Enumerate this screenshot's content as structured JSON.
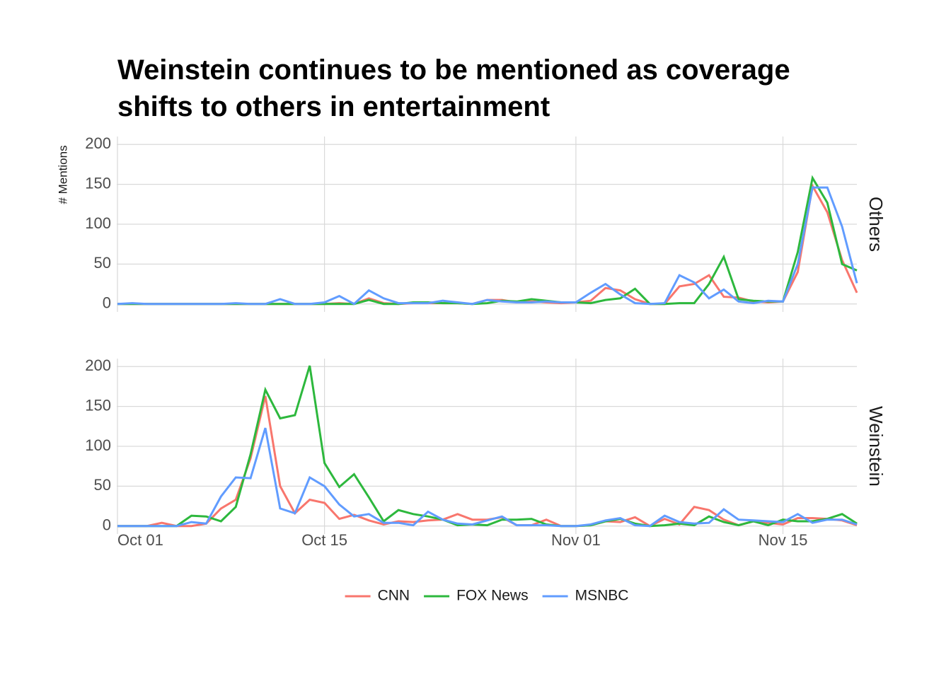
{
  "title": [
    "Weinstein continues to be mentioned as coverage",
    "shifts to others in entertainment"
  ],
  "chart_data": [
    {
      "type": "line",
      "facet": "Others",
      "y_label": "# Mentions",
      "categories": [
        "Oct 01",
        "Oct 02",
        "Oct 03",
        "Oct 04",
        "Oct 05",
        "Oct 06",
        "Oct 07",
        "Oct 08",
        "Oct 09",
        "Oct 10",
        "Oct 11",
        "Oct 12",
        "Oct 13",
        "Oct 14",
        "Oct 15",
        "Oct 16",
        "Oct 17",
        "Oct 18",
        "Oct 19",
        "Oct 20",
        "Oct 21",
        "Oct 22",
        "Oct 23",
        "Oct 24",
        "Oct 25",
        "Oct 26",
        "Oct 27",
        "Oct 28",
        "Oct 29",
        "Oct 30",
        "Oct 31",
        "Nov 01",
        "Nov 02",
        "Nov 03",
        "Nov 04",
        "Nov 05",
        "Nov 06",
        "Nov 07",
        "Nov 08",
        "Nov 09",
        "Nov 10",
        "Nov 11",
        "Nov 12",
        "Nov 13",
        "Nov 14",
        "Nov 15",
        "Nov 16",
        "Nov 17",
        "Nov 18",
        "Nov 19",
        "Nov 20"
      ],
      "series": [
        {
          "name": "CNN",
          "color": "#f8766d",
          "values": [
            0,
            0,
            0,
            0,
            0,
            0,
            0,
            0,
            0,
            0,
            0,
            0,
            0,
            0,
            0,
            1,
            0,
            7,
            1,
            0,
            1,
            1,
            1,
            1,
            0,
            5,
            5,
            2,
            3,
            2,
            1,
            2,
            4,
            20,
            17,
            6,
            0,
            0,
            22,
            25,
            36,
            9,
            8,
            3,
            2,
            3,
            40,
            148,
            115,
            55,
            14
          ]
        },
        {
          "name": "FOX News",
          "color": "#2db83d",
          "values": [
            0,
            0,
            0,
            0,
            0,
            0,
            0,
            0,
            0,
            0,
            0,
            0,
            0,
            0,
            0,
            0,
            0,
            5,
            0,
            0,
            2,
            2,
            1,
            1,
            0,
            1,
            4,
            3,
            6,
            4,
            2,
            2,
            1,
            5,
            7,
            19,
            0,
            0,
            1,
            1,
            25,
            59,
            6,
            4,
            3,
            3,
            65,
            158,
            127,
            50,
            42
          ]
        },
        {
          "name": "MSNBC",
          "color": "#619cff",
          "values": [
            0,
            1,
            0,
            0,
            0,
            0,
            0,
            0,
            1,
            0,
            0,
            6,
            0,
            0,
            2,
            10,
            0,
            17,
            7,
            1,
            1,
            1,
            4,
            2,
            0,
            5,
            3,
            2,
            2,
            3,
            2,
            2,
            14,
            25,
            12,
            1,
            0,
            1,
            36,
            27,
            7,
            18,
            3,
            1,
            4,
            3,
            50,
            146,
            146,
            97,
            26
          ]
        }
      ],
      "ylim": [
        -10,
        210
      ],
      "yticks": [
        0,
        50,
        100,
        150,
        200
      ],
      "xticks": [
        "Oct 01",
        "Oct 15",
        "Nov 01",
        "Nov 15"
      ],
      "grid": true
    },
    {
      "type": "line",
      "facet": "Weinstein",
      "categories": [
        "Oct 01",
        "Oct 02",
        "Oct 03",
        "Oct 04",
        "Oct 05",
        "Oct 06",
        "Oct 07",
        "Oct 08",
        "Oct 09",
        "Oct 10",
        "Oct 11",
        "Oct 12",
        "Oct 13",
        "Oct 14",
        "Oct 15",
        "Oct 16",
        "Oct 17",
        "Oct 18",
        "Oct 19",
        "Oct 20",
        "Oct 21",
        "Oct 22",
        "Oct 23",
        "Oct 24",
        "Oct 25",
        "Oct 26",
        "Oct 27",
        "Oct 28",
        "Oct 29",
        "Oct 30",
        "Oct 31",
        "Nov 01",
        "Nov 02",
        "Nov 03",
        "Nov 04",
        "Nov 05",
        "Nov 06",
        "Nov 07",
        "Nov 08",
        "Nov 09",
        "Nov 10",
        "Nov 11",
        "Nov 12",
        "Nov 13",
        "Nov 14",
        "Nov 15",
        "Nov 16",
        "Nov 17",
        "Nov 18",
        "Nov 19",
        "Nov 20"
      ],
      "series": [
        {
          "values": [
            0,
            0,
            0,
            4,
            0,
            0,
            3,
            22,
            33,
            85,
            163,
            50,
            16,
            33,
            29,
            9,
            14,
            7,
            2,
            6,
            5,
            7,
            8,
            15,
            8,
            8,
            11,
            1,
            1,
            8,
            0,
            0,
            1,
            6,
            5,
            11,
            0,
            9,
            2,
            24,
            20,
            8,
            1,
            6,
            4,
            2,
            10,
            10,
            9,
            7,
            1
          ]
        },
        {
          "values": [
            0,
            0,
            0,
            0,
            0,
            13,
            12,
            6,
            24,
            90,
            171,
            135,
            139,
            201,
            79,
            49,
            65,
            36,
            6,
            20,
            15,
            12,
            8,
            1,
            2,
            1,
            8,
            8,
            9,
            2,
            0,
            0,
            1,
            6,
            9,
            3,
            0,
            1,
            3,
            1,
            12,
            5,
            1,
            6,
            1,
            8,
            6,
            6,
            9,
            15,
            3
          ]
        },
        {
          "values": [
            0,
            0,
            0,
            0,
            0,
            5,
            3,
            37,
            61,
            60,
            123,
            22,
            16,
            61,
            50,
            27,
            12,
            15,
            4,
            4,
            1,
            18,
            8,
            3,
            2,
            7,
            12,
            1,
            1,
            1,
            0,
            0,
            2,
            7,
            10,
            1,
            0,
            13,
            5,
            3,
            4,
            21,
            8,
            7,
            6,
            5,
            15,
            4,
            8,
            8,
            2
          ]
        }
      ],
      "ylim": [
        -10,
        210
      ],
      "yticks": [
        0,
        50,
        100,
        150,
        200
      ],
      "xticks": [
        "Oct 01",
        "Oct 15",
        "Nov 01",
        "Nov 15"
      ],
      "grid": true
    }
  ]
}
